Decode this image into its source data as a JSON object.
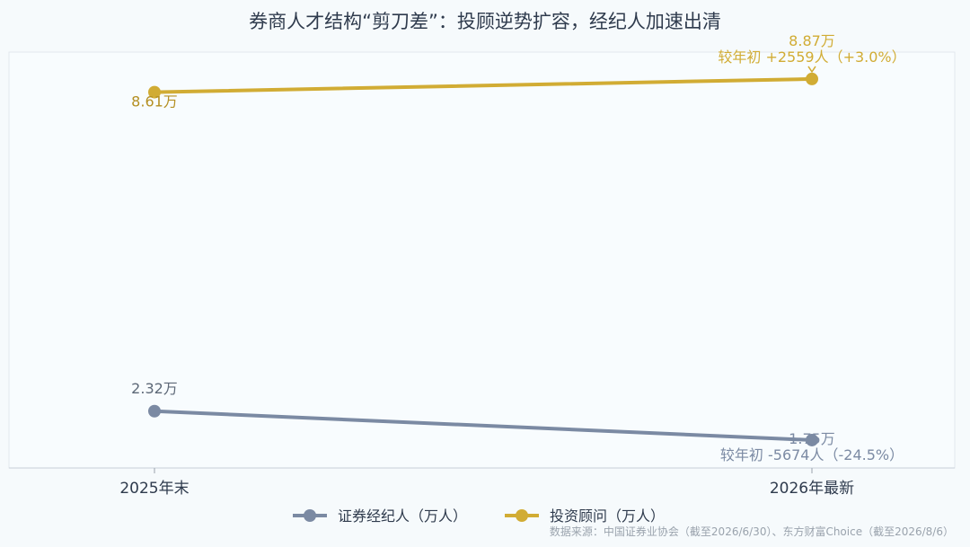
{
  "chart_data": {
    "type": "line",
    "title": "券商人才结构“剪刀差”：投顾逆势扩容，经纪人加速出清",
    "categories": [
      "2025年末",
      "2026年最新"
    ],
    "series": [
      {
        "name": "证券经纪人（万人）",
        "color": "#7b8aa3",
        "values": [
          2.32,
          1.75
        ],
        "labels": [
          "2.32万",
          "1.75万"
        ],
        "change_note": "较年初 -5674人（-24.5%）"
      },
      {
        "name": "投资顾问（万人）",
        "color": "#d1ac34",
        "values": [
          8.61,
          8.87
        ],
        "labels": [
          "8.61万",
          "8.87万"
        ],
        "change_note": "较年初 +2559人（+3.0%）"
      }
    ],
    "ylim": [
      1.2,
      9.4
    ],
    "grid": false,
    "legend_position": "bottom-center",
    "source": "数据来源：中国证券业协会（截至2026/6/30）、东方财富Choice（截至2026/8/6）"
  }
}
